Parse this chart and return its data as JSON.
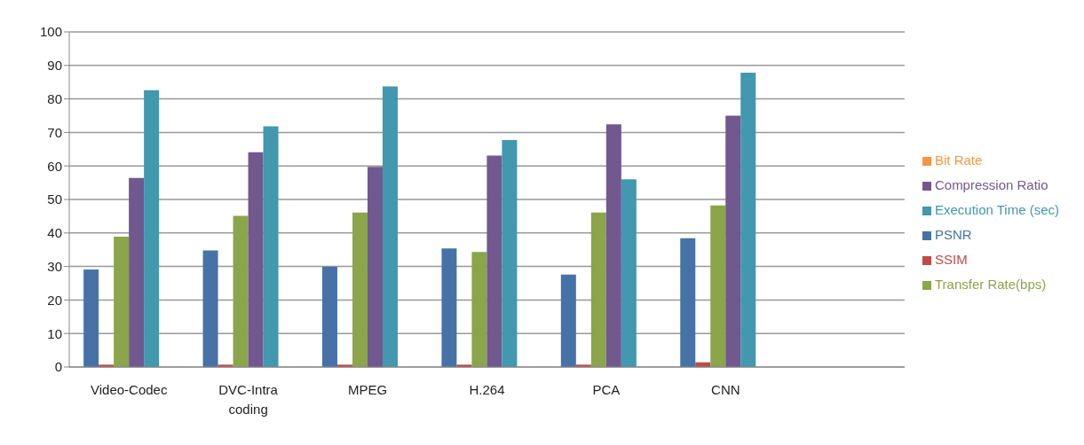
{
  "chart_data": {
    "type": "bar",
    "categories": [
      "Video-Codec",
      "DVC-Intra coding",
      "MPEG",
      "H.264",
      "PCA",
      "CNN",
      null
    ],
    "series": [
      {
        "name": "PSNR",
        "color": "#4672a8",
        "values": [
          29.1,
          34.8,
          29.9,
          35.4,
          27.6,
          38.4,
          null
        ]
      },
      {
        "name": "SSIM",
        "color": "#be4b48",
        "values": [
          0.7,
          0.7,
          0.7,
          0.7,
          0.7,
          1.4,
          null
        ]
      },
      {
        "name": "Transfer Rate(bps)",
        "color": "#8ba54a",
        "values": [
          38.9,
          45.1,
          46.1,
          34.3,
          46.1,
          48.2,
          null
        ]
      },
      {
        "name": "Compression Ratio",
        "color": "#71588f",
        "values": [
          56.4,
          64.1,
          59.7,
          63.1,
          72.4,
          75.0,
          null
        ]
      },
      {
        "name": "Execution Time  (sec)",
        "color": "#4198af",
        "values": [
          82.6,
          71.8,
          83.7,
          67.7,
          56.0,
          87.8,
          null
        ]
      },
      {
        "name": "Bit Rate",
        "color": "#f79646",
        "values": [
          0,
          0,
          0,
          0,
          0,
          0,
          null
        ]
      }
    ],
    "ylim": [
      0,
      100
    ],
    "yticks": [
      0,
      10,
      20,
      30,
      40,
      50,
      60,
      70,
      80,
      90,
      100
    ],
    "grid": "y",
    "legend": "right"
  }
}
